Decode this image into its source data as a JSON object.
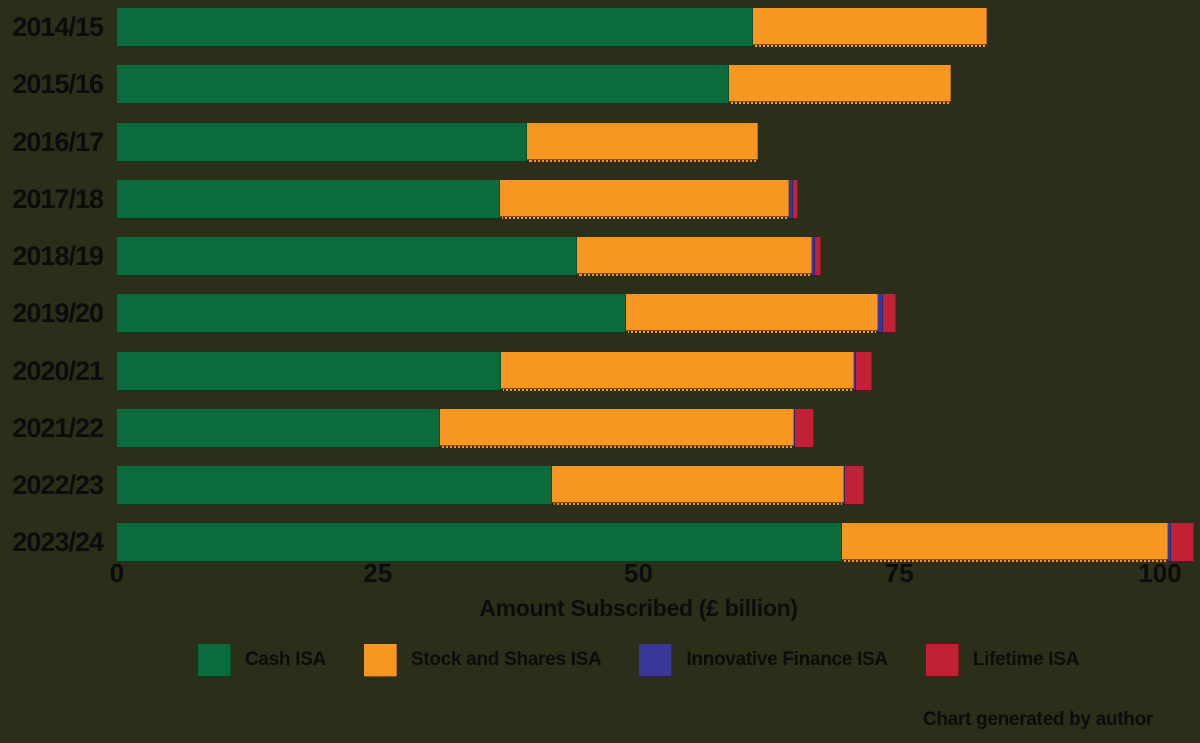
{
  "colors": {
    "background": "#2b2e18",
    "text": "#0c0c0c",
    "cash_isa": "#0c6b3d",
    "stock_and_shares_isa": "#f79620",
    "innovative_finance_isa": "#3b3798",
    "lifetime_isa": "#c22035"
  },
  "chart_data": {
    "type": "bar",
    "orientation": "horizontal",
    "stacked": true,
    "title": "",
    "xlabel": "Amount Subscribed (£ billion)",
    "ylabel": "",
    "xlim": [
      0,
      100
    ],
    "x_ticks": [
      "0",
      "25",
      "50",
      "75",
      "100"
    ],
    "x_tick_values": [
      0,
      25,
      50,
      75,
      100
    ],
    "grid": false,
    "legend_position": "bottom",
    "categories": [
      "2014/15",
      "2015/16",
      "2016/17",
      "2017/18",
      "2018/19",
      "2019/20",
      "2020/21",
      "2021/22",
      "2022/23",
      "2023/24"
    ],
    "series": [
      {
        "name": "Cash ISA",
        "color_key": "cash_isa",
        "values": [
          61.0,
          58.7,
          39.3,
          36.7,
          44.1,
          48.8,
          36.8,
          31.0,
          41.7,
          69.5
        ]
      },
      {
        "name": "Stock and Shares ISA",
        "color_key": "stock_and_shares_isa",
        "values": [
          22.4,
          21.3,
          22.2,
          27.7,
          22.5,
          24.2,
          33.9,
          33.9,
          28.0,
          31.3
        ]
      },
      {
        "name": "Innovative Finance ISA",
        "color_key": "innovative_finance_isa",
        "values": [
          0,
          0,
          0,
          0.4,
          0.3,
          0.4,
          0.15,
          0.15,
          0.1,
          0.25
        ]
      },
      {
        "name": "Lifetime ISA",
        "color_key": "lifetime_isa",
        "values": [
          0,
          0,
          0,
          0.5,
          0.6,
          1.3,
          1.5,
          1.8,
          1.8,
          2.2
        ]
      }
    ]
  },
  "footnote": "Chart generated by author"
}
